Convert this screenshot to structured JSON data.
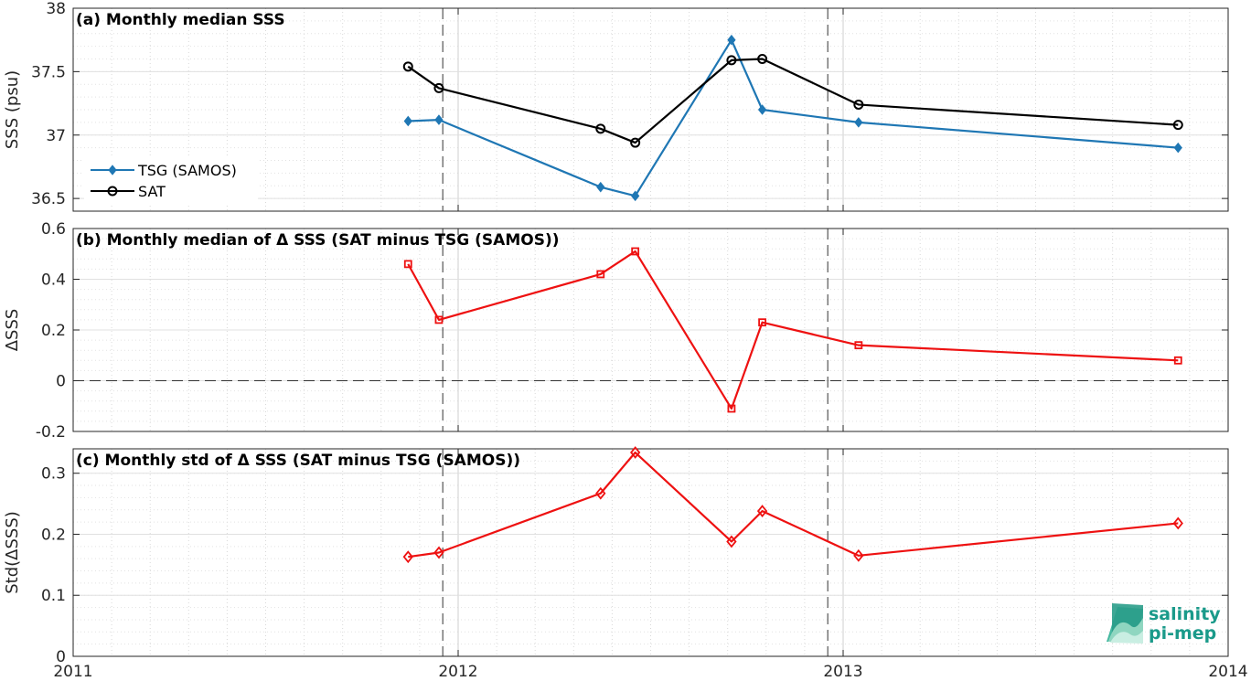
{
  "chart_data": [
    {
      "type": "line",
      "id": "a",
      "title": "(a) Monthly median SSS",
      "ylabel": "SSS (psu)",
      "ylim": [
        36.4,
        38
      ],
      "yticks": [
        36.5,
        37,
        37.5,
        38
      ],
      "ytick_labels": [
        "36.5",
        "37",
        "37.5",
        "38"
      ],
      "xlim": [
        2011,
        2014
      ],
      "xticks": [
        2011,
        2012,
        2013,
        2014
      ],
      "xtick_labels": [
        "",
        "",
        "",
        ""
      ],
      "grid": true,
      "legend": "middle-left",
      "vlines": [
        2011.96,
        2012.96
      ],
      "series": [
        {
          "name": "TSG (SAMOS)",
          "color": "#1f77b4",
          "marker": "diamond-filled",
          "x": [
            2011.87,
            2011.95,
            2012.37,
            2012.46,
            2012.71,
            2012.79,
            2013.04,
            2013.87
          ],
          "values": [
            37.11,
            37.12,
            36.59,
            36.52,
            37.75,
            37.2,
            37.1,
            36.9
          ]
        },
        {
          "name": "SAT",
          "color": "#000000",
          "marker": "circle-open",
          "x": [
            2011.87,
            2011.95,
            2012.37,
            2012.46,
            2012.71,
            2012.79,
            2013.04,
            2013.87
          ],
          "values": [
            37.54,
            37.37,
            37.05,
            36.94,
            37.59,
            37.6,
            37.24,
            37.08
          ]
        }
      ]
    },
    {
      "type": "line",
      "id": "b",
      "title": "(b) Monthly median of Δ SSS (SAT minus TSG (SAMOS))",
      "ylabel": "ΔSSS",
      "ylim": [
        -0.2,
        0.6
      ],
      "yticks": [
        -0.2,
        0,
        0.2,
        0.4,
        0.6
      ],
      "ytick_labels": [
        "-0.2",
        "0",
        "0.2",
        "0.4",
        "0.6"
      ],
      "xlim": [
        2011,
        2014
      ],
      "xticks": [
        2011,
        2012,
        2013,
        2014
      ],
      "xtick_labels": [
        "",
        "",
        "",
        ""
      ],
      "grid": true,
      "vlines": [
        2011.96,
        2012.96
      ],
      "hlines": [
        0
      ],
      "series": [
        {
          "color": "#ee1111",
          "marker": "square-open",
          "x": [
            2011.87,
            2011.95,
            2012.37,
            2012.46,
            2012.71,
            2012.79,
            2013.04,
            2013.87
          ],
          "values": [
            0.46,
            0.24,
            0.42,
            0.51,
            -0.11,
            0.23,
            0.14,
            0.08
          ]
        }
      ]
    },
    {
      "type": "line",
      "id": "c",
      "title": "(c) Monthly std of Δ SSS (SAT minus TSG (SAMOS))",
      "ylabel": "Std(ΔSSS)",
      "ylim": [
        0,
        0.34
      ],
      "yticks": [
        0,
        0.1,
        0.2,
        0.3
      ],
      "ytick_labels": [
        "0",
        "0.1",
        "0.2",
        "0.3"
      ],
      "xlim": [
        2011,
        2014
      ],
      "xticks": [
        2011,
        2012,
        2013,
        2014
      ],
      "xtick_labels": [
        "2011",
        "2012",
        "2013",
        "2014"
      ],
      "grid": true,
      "vlines": [
        2011.96,
        2012.96
      ],
      "series": [
        {
          "color": "#ee1111",
          "marker": "diamond-open",
          "x": [
            2011.87,
            2011.95,
            2012.37,
            2012.46,
            2012.71,
            2012.79,
            2013.04,
            2013.87
          ],
          "values": [
            0.163,
            0.17,
            0.267,
            0.334,
            0.188,
            0.238,
            0.165,
            0.218
          ]
        }
      ]
    }
  ],
  "logo": {
    "line1": "salinity",
    "line2": "pi-mep"
  }
}
